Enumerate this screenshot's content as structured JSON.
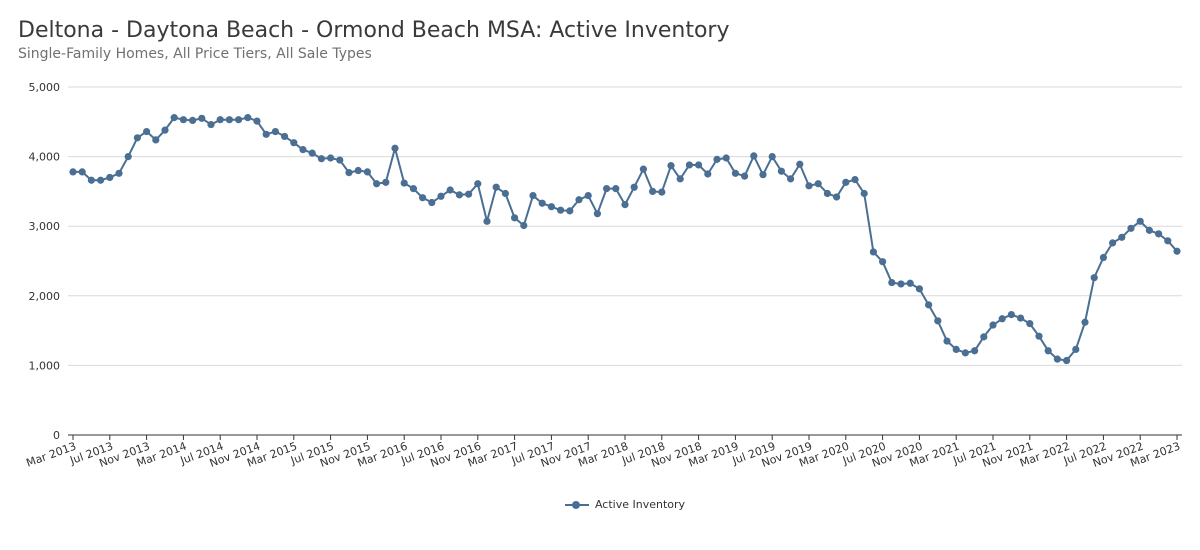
{
  "header": {
    "title": "Deltona - Daytona Beach - Ormond Beach MSA: Active Inventory",
    "subtitle": "Single-Family Homes, All Price Tiers, All Sale Types"
  },
  "colors": {
    "series": "#4a6f93",
    "grid": "#d9d9d9",
    "axis": "#333333"
  },
  "chart_data": {
    "type": "line",
    "title": "Deltona - Daytona Beach - Ormond Beach MSA: Active Inventory",
    "subtitle": "Single-Family Homes, All Price Tiers, All Sale Types",
    "xlabel": "",
    "ylabel": "",
    "ylim": [
      0,
      5000
    ],
    "yticks": [
      0,
      1000,
      2000,
      3000,
      4000,
      5000
    ],
    "ytick_labels": [
      "0",
      "1,000",
      "2,000",
      "3,000",
      "4,000",
      "5,000"
    ],
    "xtick_labels": [
      "Mar 2013",
      "Jul 2013",
      "Nov 2013",
      "Mar 2014",
      "Jul 2014",
      "Nov 2014",
      "Mar 2015",
      "Jul 2015",
      "Nov 2015",
      "Mar 2016",
      "Jul 2016",
      "Nov 2016",
      "Mar 2017",
      "Jul 2017",
      "Nov 2017",
      "Mar 2018",
      "Jul 2018",
      "Nov 2018",
      "Mar 2019",
      "Jul 2019",
      "Nov 2019",
      "Mar 2020",
      "Jul 2020",
      "Nov 2020",
      "Mar 2021",
      "Jul 2021",
      "Nov 2021",
      "Mar 2022",
      "Jul 2022",
      "Nov 2022",
      "Mar 2023"
    ],
    "grid": true,
    "legend": "bottom-center",
    "x_start": "Mar 2013",
    "x_end": "Mar 2023",
    "series": [
      {
        "name": "Active Inventory",
        "values": [
          3780,
          3780,
          3660,
          3660,
          3700,
          3760,
          4000,
          4270,
          4360,
          4240,
          4380,
          4560,
          4530,
          4520,
          4550,
          4460,
          4530,
          4530,
          4530,
          4560,
          4510,
          4320,
          4360,
          4290,
          4200,
          4100,
          4050,
          3970,
          3980,
          3950,
          3770,
          3800,
          3780,
          3610,
          3630,
          4120,
          3620,
          3540,
          3410,
          3340,
          3430,
          3520,
          3450,
          3460,
          3610,
          3070,
          3560,
          3470,
          3120,
          3010,
          3440,
          3330,
          3280,
          3230,
          3220,
          3380,
          3440,
          3180,
          3540,
          3540,
          3310,
          3560,
          3820,
          3500,
          3490,
          3870,
          3680,
          3880,
          3880,
          3750,
          3960,
          3980,
          3760,
          3720,
          4010,
          3740,
          4000,
          3790,
          3680,
          3890,
          3580,
          3610,
          3470,
          3420,
          3630,
          3670,
          3470,
          2630,
          2490,
          2190,
          2170,
          2180,
          2100,
          1870,
          1640,
          1350,
          1230,
          1180,
          1210,
          1410,
          1580,
          1670,
          1730,
          1680,
          1600,
          1420,
          1210,
          1090,
          1070,
          1230,
          1620,
          2260,
          2550,
          2760,
          2840,
          2970,
          3070,
          2940,
          2890,
          2790,
          2640
        ]
      }
    ]
  }
}
